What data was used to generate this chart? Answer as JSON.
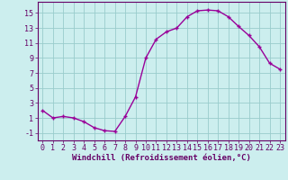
{
  "x": [
    0,
    1,
    2,
    3,
    4,
    5,
    6,
    7,
    8,
    9,
    10,
    11,
    12,
    13,
    14,
    15,
    16,
    17,
    18,
    19,
    20,
    21,
    22,
    23
  ],
  "y": [
    2.0,
    1.0,
    1.2,
    1.0,
    0.5,
    -0.3,
    -0.7,
    -0.8,
    1.2,
    3.8,
    9.0,
    11.5,
    12.5,
    13.0,
    14.5,
    15.3,
    15.4,
    15.3,
    14.5,
    13.2,
    12.0,
    10.5,
    8.3,
    7.5
  ],
  "line_color": "#990099",
  "marker": "+",
  "bg_color": "#cceeee",
  "grid_color": "#99cccc",
  "xlabel": "Windchill (Refroidissement éolien,°C)",
  "xlim": [
    -0.5,
    23.5
  ],
  "ylim": [
    -2.0,
    16.5
  ],
  "yticks": [
    -1,
    1,
    3,
    5,
    7,
    9,
    11,
    13,
    15
  ],
  "xticks": [
    0,
    1,
    2,
    3,
    4,
    5,
    6,
    7,
    8,
    9,
    10,
    11,
    12,
    13,
    14,
    15,
    16,
    17,
    18,
    19,
    20,
    21,
    22,
    23
  ],
  "xlabel_fontsize": 6.5,
  "tick_fontsize": 6.0,
  "label_color": "#660066",
  "spine_color": "#660066",
  "line_width": 1.0,
  "marker_size": 3.5,
  "marker_edge_width": 1.0
}
